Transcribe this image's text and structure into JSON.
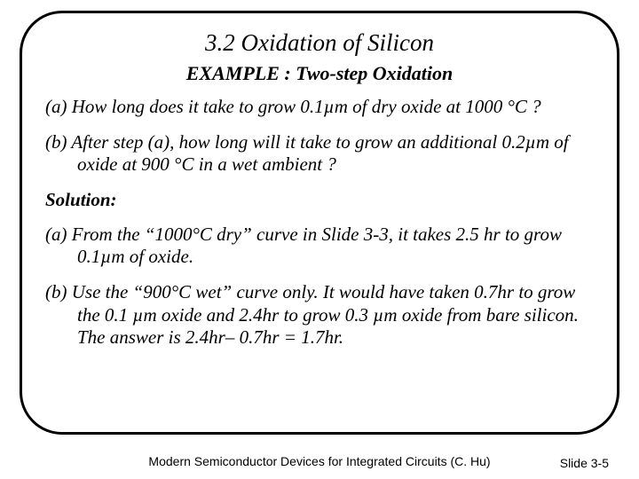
{
  "title": "3.2 Oxidation of Silicon",
  "subtitle": "EXAMPLE : Two-step Oxidation",
  "q_a": "(a) How long does it take to grow 0.1µm of dry oxide at 1000 °C ?",
  "q_b": "(b) After step (a), how long will it take to grow an additional 0.2µm of oxide at 900 °C in a wet ambient ?",
  "solution_label": "Solution:",
  "sol_a": "(a) From the “1000°C dry” curve in Slide 3-3, it takes 2.5 hr to grow 0.1µm of oxide.",
  "sol_b": "(b) Use the “900°C wet” curve only. It would have taken 0.7hr to grow the 0.1 µm oxide and 2.4hr to grow 0.3 µm oxide from bare silicon. The answer is 2.4hr– 0.7hr = 1.7hr.",
  "footer_center": "Modern Semiconductor Devices for Integrated Circuits (C. Hu)",
  "footer_right": "Slide 3-5",
  "colors": {
    "border": "#000000",
    "text": "#000000",
    "background": "#ffffff"
  }
}
